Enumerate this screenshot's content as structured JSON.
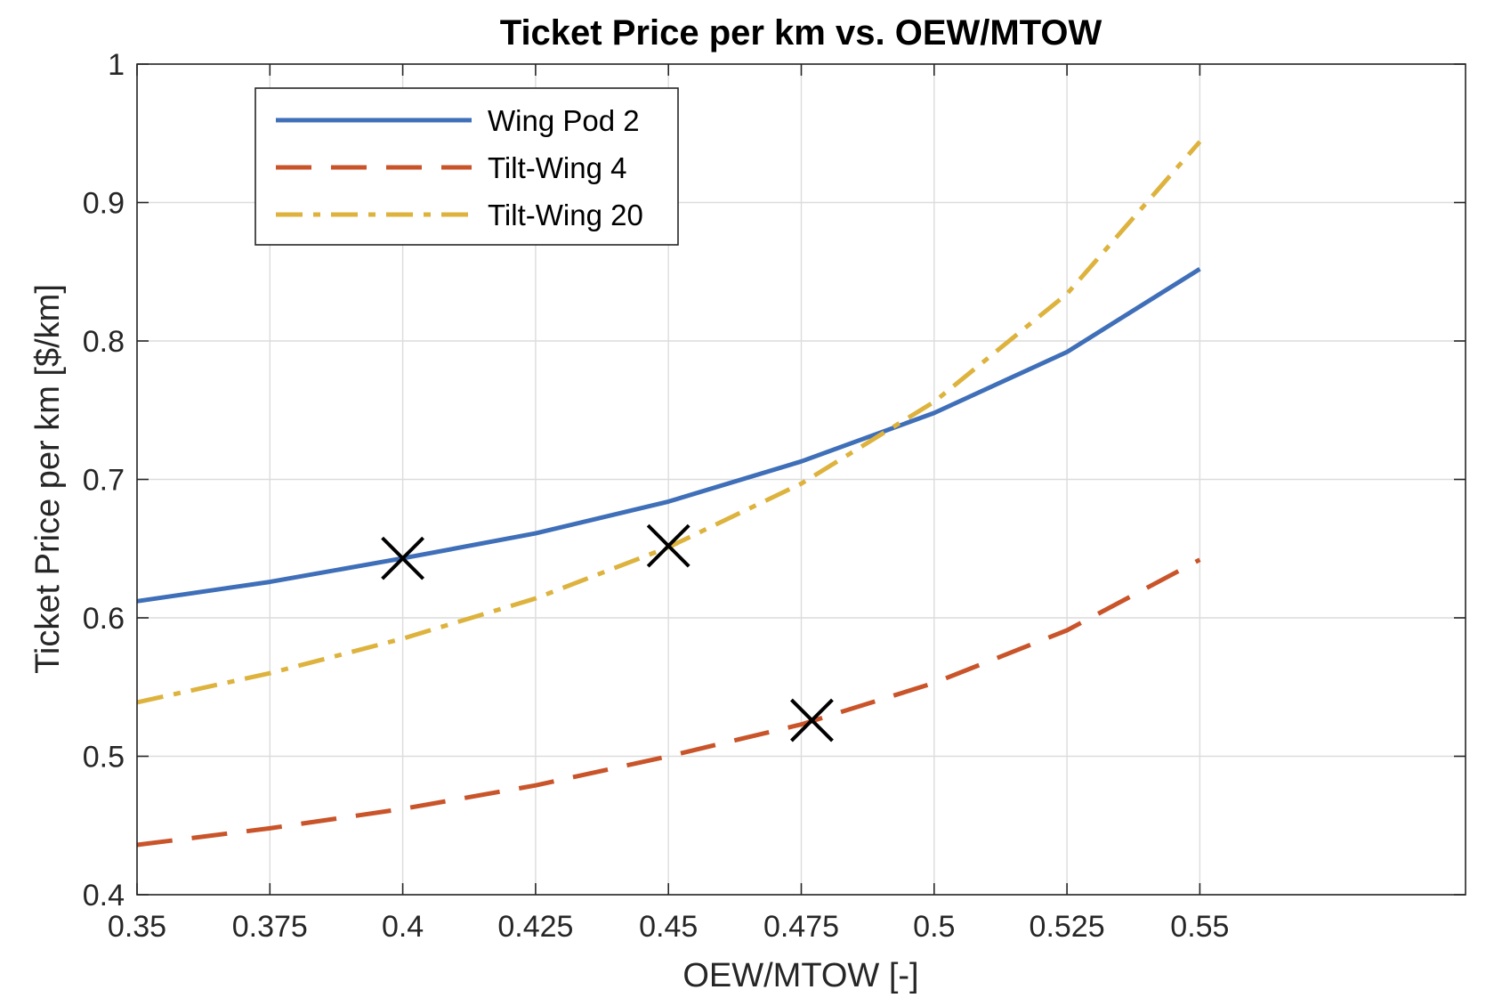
{
  "chart_data": {
    "type": "line",
    "title": "Ticket Price per km vs. OEW/MTOW",
    "xlabel": "OEW/MTOW [-]",
    "ylabel": "Ticket Price per km [$/km]",
    "xlim": [
      0.35,
      0.6
    ],
    "ylim": [
      0.4,
      1.0
    ],
    "xticks": [
      0.35,
      0.375,
      0.4,
      0.425,
      0.45,
      0.475,
      0.5,
      0.525,
      0.55
    ],
    "xtick_labels": [
      "0.35",
      "0.375",
      "0.4",
      "0.425",
      "0.45",
      "0.475",
      "0.5",
      "0.525",
      "0.55"
    ],
    "yticks": [
      0.4,
      0.5,
      0.6,
      0.7,
      0.8,
      0.9,
      1.0
    ],
    "ytick_labels": [
      "0.4",
      "0.5",
      "0.6",
      "0.7",
      "0.8",
      "0.9",
      "1"
    ],
    "grid": true,
    "legend_position": "top-left",
    "x": [
      0.35,
      0.375,
      0.4,
      0.425,
      0.45,
      0.475,
      0.5,
      0.525,
      0.55
    ],
    "series": [
      {
        "name": "Wing Pod 2",
        "color": "#3F6FB8",
        "style": "solid",
        "values": [
          0.612,
          0.626,
          0.643,
          0.661,
          0.684,
          0.713,
          0.748,
          0.792,
          0.852
        ]
      },
      {
        "name": "Tilt-Wing 4",
        "color": "#C9542A",
        "style": "dashed",
        "values": [
          0.436,
          0.448,
          0.462,
          0.479,
          0.5,
          0.523,
          0.553,
          0.591,
          0.642
        ]
      },
      {
        "name": "Tilt-Wing 20",
        "color": "#DDB33E",
        "style": "dashdot",
        "values": [
          0.539,
          0.56,
          0.585,
          0.614,
          0.651,
          0.697,
          0.756,
          0.834,
          0.944
        ]
      }
    ],
    "markers": [
      {
        "x": 0.4,
        "y": 0.643,
        "symbol": "x",
        "color": "#000000"
      },
      {
        "x": 0.45,
        "y": 0.652,
        "symbol": "x",
        "color": "#000000"
      },
      {
        "x": 0.477,
        "y": 0.526,
        "symbol": "x",
        "color": "#000000"
      }
    ]
  }
}
